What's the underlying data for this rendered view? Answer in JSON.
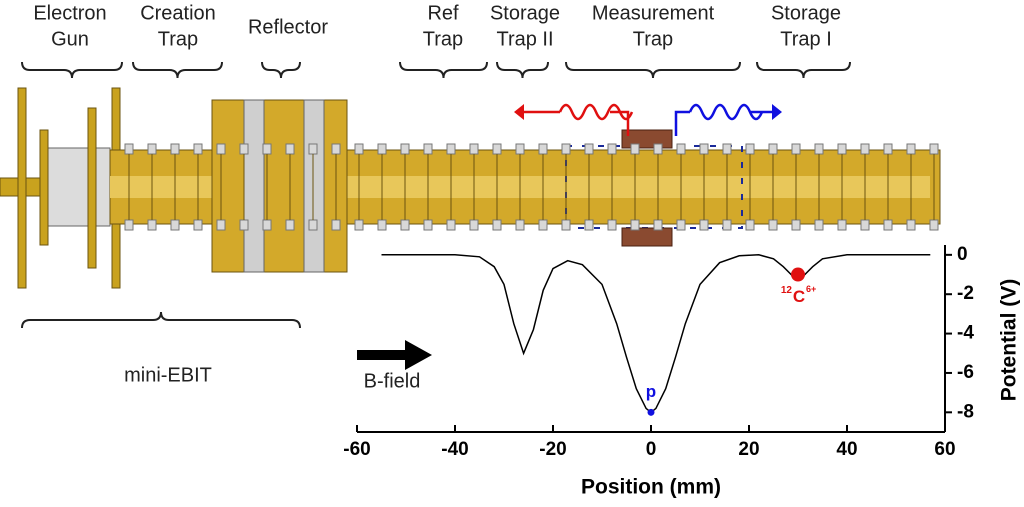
{
  "sections": [
    {
      "lines": [
        "Electron",
        "Gun"
      ]
    },
    {
      "lines": [
        "Creation",
        "Trap"
      ]
    },
    {
      "lines": [
        "Reflector"
      ]
    },
    {
      "lines": [
        "Ref",
        "Trap"
      ]
    },
    {
      "lines": [
        "Storage",
        "Trap II"
      ]
    },
    {
      "lines": [
        "Measurement",
        "Trap"
      ]
    },
    {
      "lines": [
        "Storage",
        "Trap I"
      ]
    }
  ],
  "device_label": "mini-EBIT",
  "field_label": "B-field",
  "chart_data": {
    "type": "line",
    "xlabel": "Position (mm)",
    "ylabel": "Potential (V)",
    "xlim": [
      -60,
      60
    ],
    "ylim": [
      -9,
      0.5
    ],
    "xticks": [
      -60,
      -40,
      -20,
      0,
      20,
      40,
      60
    ],
    "yticks": [
      0,
      -2,
      -4,
      -6,
      -8
    ],
    "series": [
      {
        "color": "#000000",
        "x": [
          -55,
          -40,
          -35,
          -32,
          -30,
          -28,
          -26,
          -24,
          -22,
          -20,
          -17,
          -14,
          -10,
          -7,
          -5,
          -3,
          -1,
          0,
          1,
          3,
          5,
          7,
          10,
          14,
          18,
          22,
          25,
          27,
          29,
          30,
          31,
          33,
          35,
          40,
          57
        ],
        "values": [
          0,
          0,
          -0.1,
          -0.6,
          -1.5,
          -3.5,
          -5,
          -3.8,
          -1.8,
          -0.7,
          -0.3,
          -0.5,
          -1.5,
          -3.5,
          -5.2,
          -6.8,
          -7.8,
          -8,
          -7.8,
          -6.8,
          -5.2,
          -3.5,
          -1.5,
          -0.4,
          -0.05,
          0,
          -0.2,
          -0.6,
          -1.1,
          -1.2,
          -1.1,
          -0.6,
          -0.2,
          0,
          0
        ]
      }
    ],
    "points": [
      {
        "x": 0,
        "value": -8,
        "color": "#1010e0",
        "label": "p"
      },
      {
        "x": 30,
        "value": -1,
        "color": "#e01010",
        "mass": "12",
        "symbol": "C",
        "charge": "6+"
      }
    ]
  }
}
